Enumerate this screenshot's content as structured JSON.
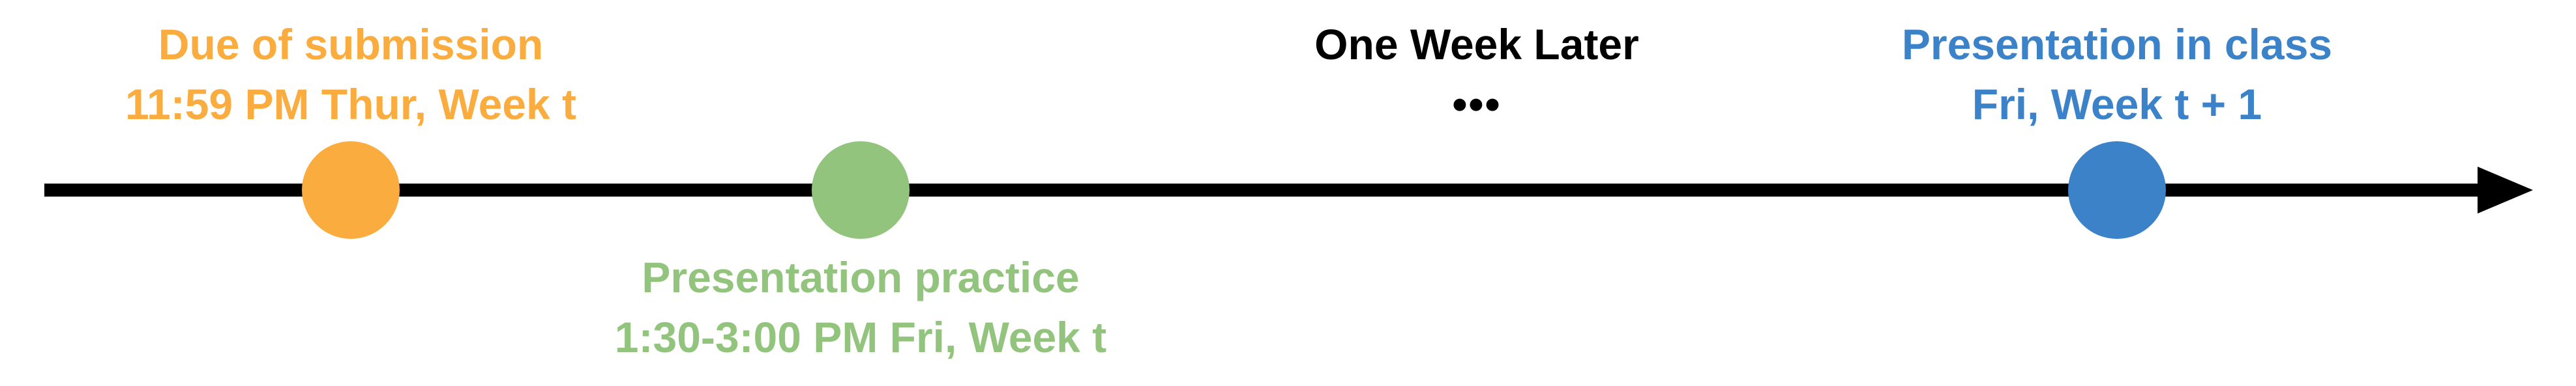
{
  "colors": {
    "axis": "#000000",
    "orange": "#FBAC3F",
    "green": "#93C47D",
    "blue": "#3C82C8",
    "dark": "#000000"
  },
  "events": [
    {
      "id": "submission",
      "title": "Due of submission",
      "subtitle": "11:59 PM Thur, Week t",
      "color": "#FBAC3F"
    },
    {
      "id": "practice",
      "title": "Presentation practice",
      "subtitle": "1:30-3:00 PM Fri, Week t",
      "color": "#93C47D"
    },
    {
      "id": "one-week-later",
      "title": "One Week Later",
      "subtitle": "•••",
      "color": "#000000"
    },
    {
      "id": "presentation",
      "title": "Presentation in class",
      "subtitle": "Fri, Week t + 1",
      "color": "#3C82C8"
    }
  ]
}
